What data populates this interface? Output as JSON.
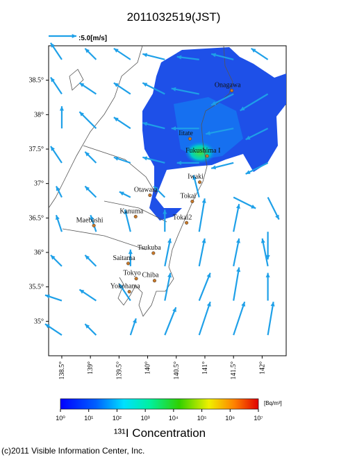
{
  "title": "2011032519(JST)",
  "wind_legend": {
    "speed": 5,
    "label": ":5.0[m/s]"
  },
  "map": {
    "xlim": [
      138.27,
      142.42
    ],
    "ylim": [
      34.5,
      39.0
    ],
    "lon_ticks": [
      {
        "value": 138.5,
        "label": "138.5°"
      },
      {
        "value": 139,
        "label": "139°"
      },
      {
        "value": 139.5,
        "label": "139.5°"
      },
      {
        "value": 140,
        "label": "140°"
      },
      {
        "value": 140.5,
        "label": "140.5°"
      },
      {
        "value": 141,
        "label": "141°"
      },
      {
        "value": 141.5,
        "label": "141.5°"
      },
      {
        "value": 142,
        "label": "142°"
      }
    ],
    "lat_ticks": [
      {
        "value": 38.5,
        "label": "38.5°"
      },
      {
        "value": 38,
        "label": "38°"
      },
      {
        "value": 37.5,
        "label": "37.5°"
      },
      {
        "value": 37,
        "label": "37°"
      },
      {
        "value": 36.5,
        "label": "36.5°"
      },
      {
        "value": 36,
        "label": "36°"
      },
      {
        "value": 35.5,
        "label": "35.5°"
      },
      {
        "value": 35,
        "label": "35°"
      }
    ],
    "cities": [
      {
        "name": "Onagawa",
        "lon": 141.47,
        "lat": 38.35
      },
      {
        "name": "Iitate",
        "lon": 140.74,
        "lat": 37.65
      },
      {
        "name": "Fukushima I",
        "lon": 141.04,
        "lat": 37.4
      },
      {
        "name": "Iwaki",
        "lon": 140.91,
        "lat": 37.02
      },
      {
        "name": "Otawara",
        "lon": 140.04,
        "lat": 36.83
      },
      {
        "name": "Tokai",
        "lon": 140.78,
        "lat": 36.74
      },
      {
        "name": "Kanuma",
        "lon": 139.79,
        "lat": 36.52
      },
      {
        "name": "Tokai2",
        "lon": 140.68,
        "lat": 36.43
      },
      {
        "name": "Maebashi",
        "lon": 139.06,
        "lat": 36.39
      },
      {
        "name": "Tsukuba",
        "lon": 140.1,
        "lat": 35.99
      },
      {
        "name": "Saitama",
        "lon": 139.66,
        "lat": 35.84
      },
      {
        "name": "Tokyo",
        "lon": 139.8,
        "lat": 35.62
      },
      {
        "name": "Chiba",
        "lon": 140.12,
        "lat": 35.59
      },
      {
        "name": "Yokohama",
        "lon": 139.68,
        "lat": 35.43
      }
    ],
    "wind": {
      "lons": [
        138.5,
        139.1,
        139.7,
        140.3,
        140.9,
        141.5,
        142.1
      ],
      "lats": [
        38.8,
        38.3,
        37.8,
        37.3,
        36.8,
        36.3,
        35.8,
        35.3,
        34.8
      ],
      "u": [
        [
          -2,
          -2,
          -3,
          -4,
          -4,
          -4,
          -3
        ],
        [
          -2,
          -3,
          -3,
          -4,
          -5,
          -4,
          -5
        ],
        [
          0,
          -3,
          -3,
          -4,
          -5,
          -5,
          -4
        ],
        [
          -2,
          -2,
          -3,
          -4,
          -4,
          -4,
          -4
        ],
        [
          -1,
          -2,
          -2,
          -2,
          -1,
          4,
          2
        ],
        [
          -1,
          -1,
          -1,
          0,
          1,
          1,
          0
        ],
        [
          -2,
          -2,
          0,
          1,
          1,
          1,
          -1
        ],
        [
          -3,
          -3,
          -2,
          1,
          2,
          1,
          0
        ],
        [
          -3,
          -2,
          1,
          2,
          2,
          2,
          1
        ]
      ],
      "v": [
        [
          3,
          2,
          2,
          1,
          0.5,
          1,
          2
        ],
        [
          3,
          2,
          2,
          2,
          1,
          -2,
          -3
        ],
        [
          4,
          3,
          2,
          1,
          0,
          -1,
          -2
        ],
        [
          3,
          2,
          1,
          1,
          0,
          -1,
          -2
        ],
        [
          2,
          2,
          1,
          2,
          4,
          -2,
          -4
        ],
        [
          3,
          3,
          4,
          4,
          6,
          5,
          -5
        ],
        [
          2,
          2,
          3,
          5,
          5,
          5,
          5
        ],
        [
          1,
          2,
          3,
          5,
          5,
          6,
          5
        ],
        [
          2,
          2,
          3,
          5,
          6,
          6,
          6
        ]
      ]
    }
  },
  "colorbar": {
    "title": "¹³¹I Concentration",
    "unit": "[Bq/m³]",
    "ticks": [
      {
        "value": 0,
        "label": "10⁰"
      },
      {
        "value": 1,
        "label": "10¹"
      },
      {
        "value": 2,
        "label": "10²"
      },
      {
        "value": 3,
        "label": "10³"
      },
      {
        "value": 4,
        "label": "10⁴"
      },
      {
        "value": 5,
        "label": "10⁵"
      },
      {
        "value": 6,
        "label": "10⁶"
      },
      {
        "value": 7,
        "label": "10⁷"
      }
    ]
  },
  "credit": "(c)2011 Visible Information Center, Inc."
}
